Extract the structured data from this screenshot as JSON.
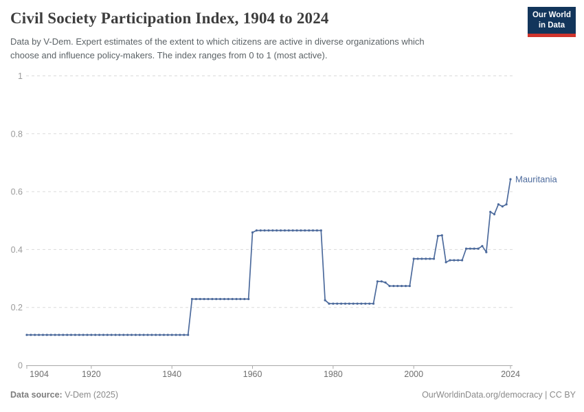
{
  "header": {
    "title": "Civil Society Participation Index, 1904 to 2024",
    "subtitle_lines": [
      "Data by V-Dem. Expert estimates of the extent to which citizens are active in diverse organizations which",
      "choose and influence policy-makers. The index ranges from 0 to 1 (most active)."
    ],
    "logo_lines": [
      "Our World",
      "in Data"
    ]
  },
  "footer": {
    "source_label": "Data source:",
    "source_value": "V-Dem (2025)",
    "link_text": "OurWorldinData.org/democracy | CC BY"
  },
  "colors": {
    "series": "#4c6a9c",
    "grid": "#dadada",
    "axis": "#a8a8a8",
    "y_label": "#9a9a9a",
    "x_label": "#6e6e6e",
    "logo_bg": "#12355b",
    "logo_bar": "#d0342c"
  },
  "chart_data": {
    "type": "line",
    "title": "Civil Society Participation Index, 1904 to 2024",
    "xlabel": "",
    "ylabel": "",
    "xlim": [
      1904,
      2024
    ],
    "ylim": [
      0,
      1
    ],
    "x_ticks": [
      1904,
      1920,
      1940,
      1960,
      1980,
      2000,
      2024
    ],
    "y_ticks": [
      0,
      0.2,
      0.4,
      0.6,
      0.8,
      1
    ],
    "y_tick_labels": [
      "0",
      "0.2",
      "0.4",
      "0.6",
      "0.8",
      "1"
    ],
    "grid": "dashed-horizontal",
    "legend": "series-end-label",
    "series": [
      {
        "name": "Mauritania",
        "color": "#4c6a9c",
        "runs": [
          {
            "from": 1904,
            "to": 1944,
            "value": 0.105
          },
          {
            "from": 1945,
            "to": 1959,
            "value": 0.229
          },
          {
            "from": 1960,
            "to": 1960,
            "value": 0.459
          },
          {
            "from": 1961,
            "to": 1977,
            "value": 0.466
          },
          {
            "from": 1978,
            "to": 1978,
            "value": 0.225
          },
          {
            "from": 1979,
            "to": 1990,
            "value": 0.213
          },
          {
            "from": 1991,
            "to": 1992,
            "value": 0.29
          },
          {
            "from": 1993,
            "to": 1993,
            "value": 0.286
          },
          {
            "from": 1994,
            "to": 1999,
            "value": 0.274
          },
          {
            "from": 2000,
            "to": 2005,
            "value": 0.368
          },
          {
            "from": 2006,
            "to": 2006,
            "value": 0.447
          },
          {
            "from": 2007,
            "to": 2007,
            "value": 0.449
          },
          {
            "from": 2008,
            "to": 2008,
            "value": 0.356
          },
          {
            "from": 2009,
            "to": 2012,
            "value": 0.363
          },
          {
            "from": 2013,
            "to": 2016,
            "value": 0.403
          },
          {
            "from": 2017,
            "to": 2017,
            "value": 0.412
          },
          {
            "from": 2018,
            "to": 2018,
            "value": 0.391
          },
          {
            "from": 2019,
            "to": 2019,
            "value": 0.53
          },
          {
            "from": 2020,
            "to": 2020,
            "value": 0.522
          },
          {
            "from": 2021,
            "to": 2021,
            "value": 0.556
          },
          {
            "from": 2022,
            "to": 2022,
            "value": 0.549
          },
          {
            "from": 2023,
            "to": 2023,
            "value": 0.556
          },
          {
            "from": 2024,
            "to": 2024,
            "value": 0.643
          }
        ]
      }
    ]
  }
}
